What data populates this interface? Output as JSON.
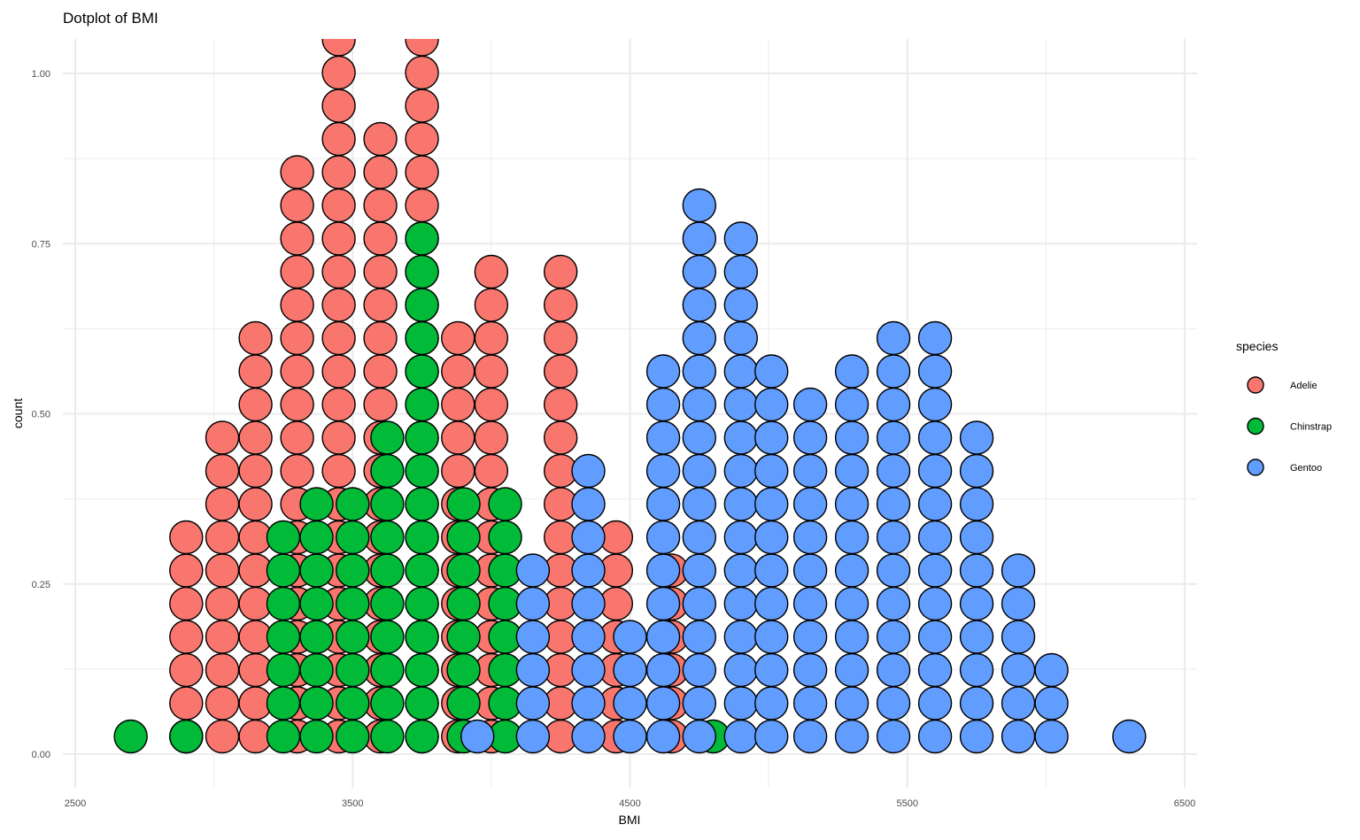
{
  "chart_data": {
    "type": "scatter",
    "subtype": "dotplot",
    "title": "Dotplot of BMI",
    "xlabel": "BMI",
    "ylabel": "count",
    "xlim": [
      2500,
      6500
    ],
    "ylim": [
      0,
      1.0
    ],
    "x_ticks": [
      2500,
      3500,
      4500,
      5500,
      6500
    ],
    "x_tick_labels": [
      "2500",
      "3500",
      "4500",
      "5500",
      "6500"
    ],
    "y_ticks": [
      0,
      0.25,
      0.5,
      0.75,
      1.0
    ],
    "y_tick_labels": [
      "0.00",
      "0.25",
      "0.50",
      "0.75",
      "1.00"
    ],
    "grid": true,
    "legend": {
      "title": "species",
      "position": "right"
    },
    "dot_outline_color": "#000000",
    "series": [
      {
        "name": "Adelie",
        "color": "#F8766D",
        "stacks": [
          {
            "x": 2900,
            "count": 1
          },
          {
            "x": 2900,
            "count": 7
          },
          {
            "x": 3030,
            "count": 10
          },
          {
            "x": 3150,
            "count": 13
          },
          {
            "x": 3300,
            "count": 18
          },
          {
            "x": 3450,
            "count": 22
          },
          {
            "x": 3600,
            "count": 19
          },
          {
            "x": 3750,
            "count": 23
          },
          {
            "x": 3880,
            "count": 13
          },
          {
            "x": 4000,
            "count": 15
          },
          {
            "x": 4250,
            "count": 15
          },
          {
            "x": 4450,
            "count": 7
          },
          {
            "x": 4650,
            "count": 6
          }
        ]
      },
      {
        "name": "Chinstrap",
        "color": "#00BA38",
        "stacks": [
          {
            "x": 2700,
            "count": 1
          },
          {
            "x": 2900,
            "count": 1
          },
          {
            "x": 3250,
            "count": 7
          },
          {
            "x": 3370,
            "count": 8
          },
          {
            "x": 3500,
            "count": 8
          },
          {
            "x": 3625,
            "count": 10
          },
          {
            "x": 3750,
            "count": 16
          },
          {
            "x": 3900,
            "count": 8
          },
          {
            "x": 4050,
            "count": 8
          },
          {
            "x": 4800,
            "count": 1
          }
        ]
      },
      {
        "name": "Gentoo",
        "color": "#619CFF",
        "stacks": [
          {
            "x": 3950,
            "count": 1
          },
          {
            "x": 4150,
            "count": 6
          },
          {
            "x": 4350,
            "count": 9
          },
          {
            "x": 4500,
            "count": 4
          },
          {
            "x": 4620,
            "count": 12
          },
          {
            "x": 4750,
            "count": 17
          },
          {
            "x": 4900,
            "count": 16
          },
          {
            "x": 5010,
            "count": 12
          },
          {
            "x": 5150,
            "count": 11
          },
          {
            "x": 5300,
            "count": 12
          },
          {
            "x": 5450,
            "count": 13
          },
          {
            "x": 5600,
            "count": 13
          },
          {
            "x": 5750,
            "count": 10
          },
          {
            "x": 5900,
            "count": 6
          },
          {
            "x": 6020,
            "count": 3
          },
          {
            "x": 6300,
            "count": 1
          }
        ]
      }
    ]
  }
}
